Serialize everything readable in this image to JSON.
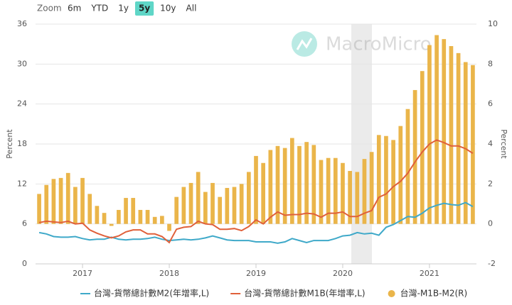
{
  "zoom": {
    "label": "Zoom",
    "options": [
      "6m",
      "YTD",
      "1y",
      "5y",
      "10y",
      "All"
    ],
    "selected": "5y"
  },
  "chart_data": {
    "type": "combo",
    "watermark": "MacroMicro",
    "y_label": "Percent",
    "y2_label": "Percent",
    "categories": [
      null,
      null,
      null,
      null,
      null,
      null,
      "2017",
      null,
      null,
      null,
      null,
      null,
      null,
      null,
      null,
      null,
      null,
      null,
      "2018",
      null,
      null,
      null,
      null,
      null,
      null,
      null,
      null,
      null,
      null,
      null,
      "2019",
      null,
      null,
      null,
      null,
      null,
      null,
      null,
      null,
      null,
      null,
      null,
      "2020",
      null,
      null,
      null,
      null,
      null,
      null,
      null,
      null,
      null,
      null,
      null,
      "2021",
      null,
      null,
      null,
      null,
      null,
      null
    ],
    "ylim": [
      0,
      36
    ],
    "yticks": [
      0,
      6,
      12,
      18,
      24,
      30,
      36
    ],
    "y2lim": [
      -2,
      10
    ],
    "y2ticks": [
      -2,
      0,
      2,
      4,
      6,
      8,
      10
    ],
    "grid": true,
    "series": [
      {
        "name": "台灣-貨幣總計數M2(年增率,L)",
        "type": "line",
        "color": "#3fa9c9",
        "values": [
          4.7,
          4.5,
          4.1,
          4.0,
          4.0,
          4.1,
          3.8,
          3.6,
          3.7,
          3.7,
          4.0,
          3.7,
          3.6,
          3.7,
          3.7,
          3.8,
          4.0,
          3.7,
          3.5,
          3.6,
          3.7,
          3.6,
          3.7,
          3.9,
          4.2,
          3.9,
          3.6,
          3.5,
          3.5,
          3.5,
          3.3,
          3.3,
          3.3,
          3.1,
          3.3,
          3.8,
          3.5,
          3.2,
          3.5,
          3.5,
          3.5,
          3.8,
          4.2,
          4.3,
          4.7,
          4.5,
          4.6,
          4.3,
          5.5,
          5.9,
          6.5,
          7.1,
          7.0,
          7.6,
          8.4,
          8.8,
          9.1,
          8.9,
          8.8,
          9.2,
          8.6
        ]
      },
      {
        "name": "台灣-貨幣總計數M1B(年增率,L)",
        "type": "line",
        "color": "#e0603a",
        "values": [
          6.2,
          6.4,
          6.3,
          6.2,
          6.4,
          6.0,
          6.1,
          5.1,
          4.6,
          4.2,
          3.9,
          4.2,
          4.8,
          5.1,
          5.1,
          4.5,
          4.5,
          4.1,
          3.2,
          5.2,
          5.5,
          5.6,
          6.4,
          6.0,
          5.9,
          5.2,
          5.2,
          5.3,
          5.0,
          5.6,
          6.6,
          6.0,
          7.0,
          7.8,
          7.3,
          7.4,
          7.4,
          7.6,
          7.5,
          7.0,
          7.6,
          7.6,
          7.8,
          7.1,
          7.1,
          7.6,
          8.0,
          10.0,
          10.5,
          11.6,
          12.4,
          13.6,
          15.3,
          16.8,
          18.0,
          18.6,
          18.2,
          17.7,
          17.7,
          17.3,
          16.6
        ]
      },
      {
        "name": "台灣-M1B-M2(R)",
        "type": "bar",
        "axis": "y2",
        "color": "#eab54a",
        "values": [
          1.5,
          1.95,
          2.25,
          2.3,
          2.55,
          1.85,
          2.3,
          1.5,
          0.9,
          0.55,
          -0.1,
          0.7,
          1.3,
          1.3,
          0.7,
          0.7,
          0.35,
          0.4,
          -0.35,
          1.35,
          1.85,
          2.05,
          2.6,
          1.6,
          2.05,
          1.35,
          1.8,
          1.85,
          2.0,
          2.6,
          3.4,
          3.05,
          3.7,
          3.9,
          3.8,
          4.3,
          3.9,
          4.1,
          3.95,
          3.2,
          3.3,
          3.3,
          3.05,
          2.65,
          2.6,
          3.25,
          3.6,
          4.45,
          4.4,
          4.2,
          4.9,
          5.75,
          6.7,
          7.65,
          8.95,
          9.45,
          9.25,
          8.9,
          8.55,
          8.1,
          7.95
        ]
      }
    ]
  }
}
